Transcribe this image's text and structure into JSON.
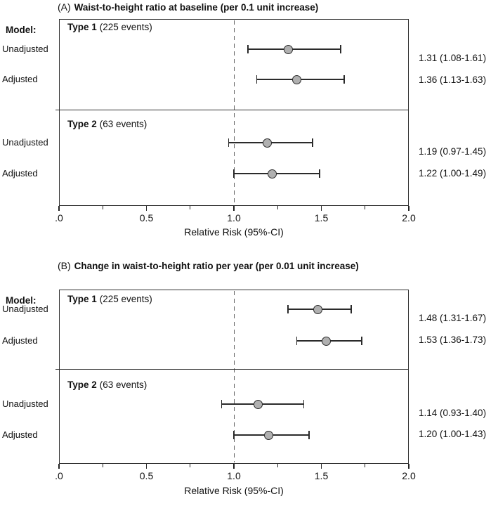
{
  "figure": {
    "model_label": "Model:",
    "colors": {
      "marker_fill": "#b0b0b0",
      "marker_stroke": "#2b2b2b",
      "line": "#2b2b2b",
      "reference_line": "#5a5a5a",
      "text": "#111111",
      "background": "#ffffff"
    }
  },
  "chart_data": [
    {
      "type": "scatter",
      "subtype": "forest_plot",
      "panel_label": "(A)",
      "title": "Waist-to-height ratio at baseline (per 0.1 unit increase)",
      "xlabel": "Relative Risk (95%-CI)",
      "xlim": [
        0.0,
        2.0
      ],
      "xticks": [
        0.0,
        0.5,
        1.0,
        1.5,
        2.0
      ],
      "xtick_labels": [
        ".0",
        "0.5",
        "1.0",
        "1.5",
        "2.0"
      ],
      "minor_xticks": [
        0.25,
        0.75,
        1.25,
        1.75
      ],
      "reference_line": 1.0,
      "legend": "none",
      "grid": false,
      "groups": [
        {
          "name": "Type 1",
          "events_label": "(225 events)",
          "rows": [
            {
              "label": "Unadjusted",
              "rr": 1.31,
              "ci_low": 1.08,
              "ci_high": 1.61,
              "display": "1.31 (1.08-1.61)"
            },
            {
              "label": "Adjusted",
              "rr": 1.36,
              "ci_low": 1.13,
              "ci_high": 1.63,
              "display": "1.36 (1.13-1.63)"
            }
          ]
        },
        {
          "name": "Type 2",
          "events_label": "(63 events)",
          "rows": [
            {
              "label": "Unadjusted",
              "rr": 1.19,
              "ci_low": 0.97,
              "ci_high": 1.45,
              "display": "1.19 (0.97-1.45)"
            },
            {
              "label": "Adjusted",
              "rr": 1.22,
              "ci_low": 1.0,
              "ci_high": 1.49,
              "display": "1.22 (1.00-1.49)"
            }
          ]
        }
      ]
    },
    {
      "type": "scatter",
      "subtype": "forest_plot",
      "panel_label": "(B)",
      "title": "Change in waist-to-height ratio per year (per 0.01 unit increase)",
      "xlabel": "Relative Risk (95%-CI)",
      "xlim": [
        0.0,
        2.0
      ],
      "xticks": [
        0.0,
        0.5,
        1.0,
        1.5,
        2.0
      ],
      "xtick_labels": [
        ".0",
        "0.5",
        "1.0",
        "1.5",
        "2.0"
      ],
      "minor_xticks": [
        0.25,
        0.75,
        1.25,
        1.75
      ],
      "reference_line": 1.0,
      "legend": "none",
      "grid": false,
      "groups": [
        {
          "name": "Type 1",
          "events_label": "(225 events)",
          "rows": [
            {
              "label": "Unadjusted",
              "rr": 1.48,
              "ci_low": 1.31,
              "ci_high": 1.67,
              "display": "1.48 (1.31-1.67)"
            },
            {
              "label": "Adjusted",
              "rr": 1.53,
              "ci_low": 1.36,
              "ci_high": 1.73,
              "display": "1.53 (1.36-1.73)"
            }
          ]
        },
        {
          "name": "Type 2",
          "events_label": "(63 events)",
          "rows": [
            {
              "label": "Unadjusted",
              "rr": 1.14,
              "ci_low": 0.93,
              "ci_high": 1.4,
              "display": "1.14 (0.93-1.40)"
            },
            {
              "label": "Adjusted",
              "rr": 1.2,
              "ci_low": 1.0,
              "ci_high": 1.43,
              "display": "1.20 (1.00-1.43)"
            }
          ]
        }
      ]
    }
  ]
}
